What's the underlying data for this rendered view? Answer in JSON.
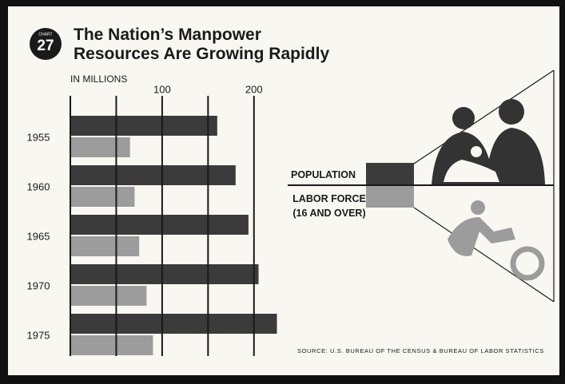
{
  "chart_data": {
    "type": "bar",
    "orientation": "horizontal",
    "chart_label": "CHART",
    "chart_number": "27",
    "title": "The Nation’s Manpower Resources Are Growing Rapidly",
    "x_label": "IN MILLIONS",
    "categories": [
      "1955",
      "1960",
      "1965",
      "1970",
      "1975"
    ],
    "series": [
      {
        "name": "POPULATION",
        "color": "#3b3b3b",
        "values": [
          160,
          180,
          194,
          205,
          225
        ]
      },
      {
        "name": "LABOR FORCE (16 AND OVER)",
        "color": "#9c9c9c",
        "values": [
          65,
          70,
          75,
          83,
          90
        ]
      }
    ],
    "xlim": [
      0,
      235
    ],
    "xticks": [
      100,
      200
    ],
    "gridlines": [
      0,
      50,
      100,
      150,
      200
    ],
    "source": "SOURCE: U.S. BUREAU OF THE CENSUS & BUREAU OF LABOR STATISTICS"
  }
}
